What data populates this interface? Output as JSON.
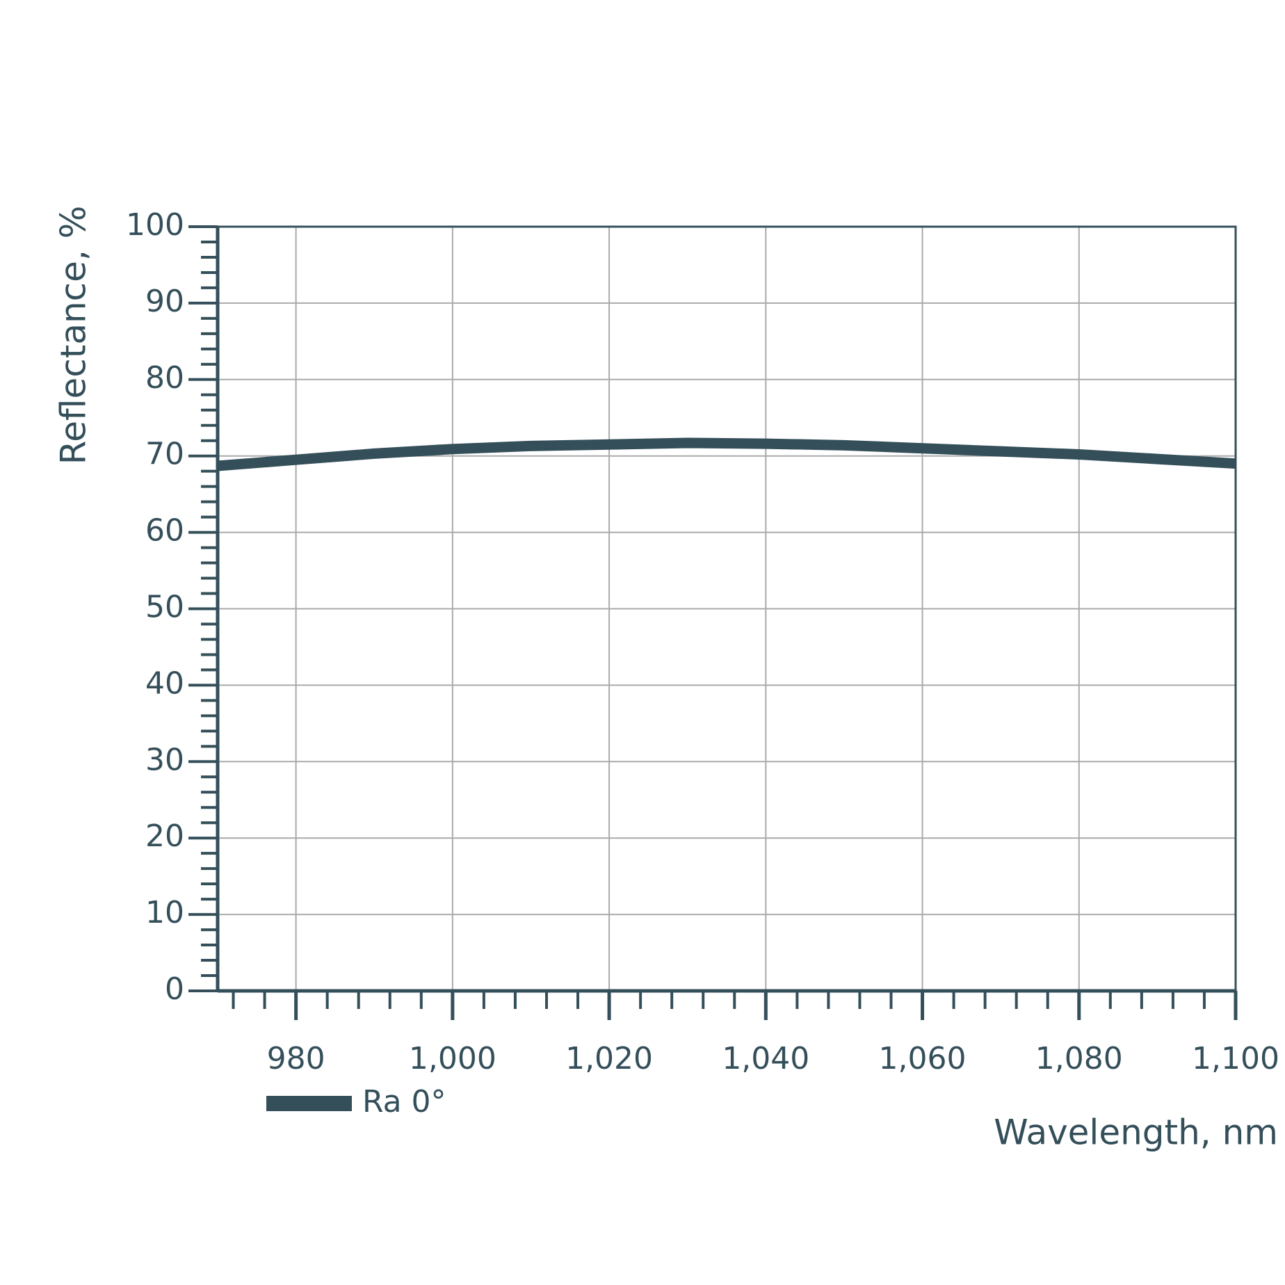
{
  "chart_data": {
    "type": "line",
    "xlabel": "Wavelength, nm",
    "ylabel": "Reflectance, %",
    "x": [
      970,
      980,
      990,
      1000,
      1010,
      1020,
      1030,
      1040,
      1050,
      1060,
      1070,
      1080,
      1090,
      1100
    ],
    "series": [
      {
        "name": "Ra 0°",
        "color": "#344f5a",
        "values": [
          68.7,
          69.5,
          70.3,
          70.9,
          71.3,
          71.5,
          71.7,
          71.6,
          71.4,
          71.0,
          70.6,
          70.2,
          69.6,
          69.0
        ]
      }
    ],
    "xlim": [
      970,
      1100
    ],
    "ylim": [
      0,
      100
    ],
    "xticks": [
      980,
      {
        "value": 1000,
        "label": "1,000"
      },
      {
        "value": 1020,
        "label": "1,020"
      },
      {
        "value": 1040,
        "label": "1,040"
      },
      {
        "value": 1060,
        "label": "1,060"
      },
      {
        "value": 1080,
        "label": "1,080"
      },
      {
        "value": 1100,
        "label": "1,100"
      }
    ],
    "yticks": [
      0,
      10,
      20,
      30,
      40,
      50,
      60,
      70,
      80,
      90,
      100
    ],
    "grid": true,
    "grid_color": "#aaaaaa",
    "axis_color": "#344f5a"
  }
}
